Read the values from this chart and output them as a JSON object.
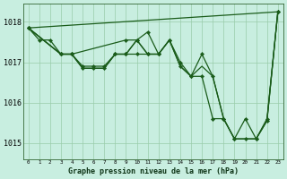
{
  "xlabel": "Graphe pression niveau de la mer (hPa)",
  "bg_color": "#c8eee0",
  "line_color": "#1a5c1a",
  "grid_color": "#99ccaa",
  "ylim": [
    1014.6,
    1018.45
  ],
  "xlim": [
    -0.5,
    23.5
  ],
  "yticks": [
    1015,
    1016,
    1017,
    1018
  ],
  "xticks": [
    0,
    1,
    2,
    3,
    4,
    5,
    6,
    7,
    8,
    9,
    10,
    11,
    12,
    13,
    14,
    15,
    16,
    17,
    18,
    19,
    20,
    21,
    22,
    23
  ],
  "series": [
    {
      "x": [
        0,
        23
      ],
      "y": [
        1017.85,
        1018.25
      ],
      "has_markers": false
    },
    {
      "x": [
        0,
        1,
        2,
        3,
        4,
        5,
        6,
        7,
        8,
        9,
        10,
        11,
        12
      ],
      "y": [
        1017.85,
        1017.55,
        1017.55,
        1017.2,
        1017.2,
        1016.9,
        1016.9,
        1016.9,
        1017.2,
        1017.2,
        1017.2,
        1017.2,
        1017.2
      ],
      "has_markers": true
    },
    {
      "x": [
        0,
        3,
        4,
        9,
        10,
        11,
        12,
        13,
        14,
        15,
        16,
        17,
        18,
        19,
        20,
        21,
        22,
        23
      ],
      "y": [
        1017.85,
        1017.2,
        1017.2,
        1017.55,
        1017.55,
        1017.75,
        1017.2,
        1017.55,
        1017.0,
        1016.65,
        1016.65,
        1015.6,
        1015.6,
        1015.1,
        1015.6,
        1015.1,
        1015.6,
        1018.25
      ],
      "has_markers": true
    },
    {
      "x": [
        0,
        3,
        4,
        5,
        6,
        7,
        8,
        9,
        10,
        11,
        12,
        13,
        14,
        15,
        16,
        17,
        18,
        19,
        20,
        21,
        22,
        23
      ],
      "y": [
        1017.85,
        1017.2,
        1017.2,
        1016.85,
        1016.85,
        1016.85,
        1017.2,
        1017.2,
        1017.55,
        1017.2,
        1017.2,
        1017.55,
        1016.9,
        1016.65,
        1017.2,
        1016.65,
        1015.6,
        1015.1,
        1015.1,
        1015.1,
        1015.55,
        1018.25
      ],
      "has_markers": true
    },
    {
      "x": [
        0,
        3,
        4,
        5,
        6,
        7,
        8,
        9,
        10,
        11,
        12,
        13,
        14,
        15,
        16,
        17,
        18,
        19,
        20,
        21,
        22,
        23
      ],
      "y": [
        1017.85,
        1017.2,
        1017.2,
        1016.85,
        1016.85,
        1016.85,
        1017.2,
        1017.2,
        1017.55,
        1017.2,
        1017.2,
        1017.55,
        1016.9,
        1016.65,
        1016.9,
        1016.65,
        1015.6,
        1015.1,
        1015.1,
        1015.1,
        1015.55,
        1018.25
      ],
      "has_markers": false
    }
  ]
}
